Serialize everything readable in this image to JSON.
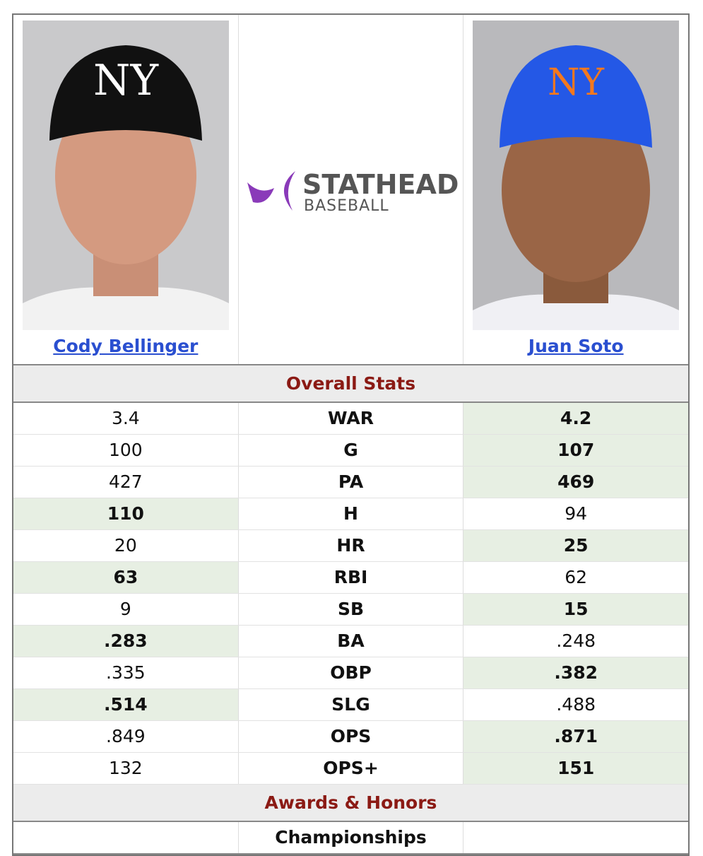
{
  "players": [
    {
      "name": "Cody Bellinger"
    },
    {
      "name": "Juan Soto"
    }
  ],
  "logo": {
    "line1": "STATHEAD",
    "line2": "BASEBALL"
  },
  "sections": [
    {
      "title": "Overall Stats",
      "rows": [
        {
          "stat": "WAR",
          "left": "3.4",
          "right": "4.2"
        },
        {
          "stat": "G",
          "left": "100",
          "right": "107"
        },
        {
          "stat": "PA",
          "left": "427",
          "right": "469"
        },
        {
          "stat": "H",
          "left": "110",
          "right": "94"
        },
        {
          "stat": "HR",
          "left": "20",
          "right": "25"
        },
        {
          "stat": "RBI",
          "left": "63",
          "right": "62"
        },
        {
          "stat": "SB",
          "left": "9",
          "right": "15"
        },
        {
          "stat": "BA",
          "left": ".283",
          "right": ".248"
        },
        {
          "stat": "OBP",
          "left": ".335",
          "right": ".382"
        },
        {
          "stat": "SLG",
          "left": ".514",
          "right": ".488"
        },
        {
          "stat": "OPS",
          "left": ".849",
          "right": ".871"
        },
        {
          "stat": "OPS+",
          "left": "132",
          "right": "151"
        }
      ]
    },
    {
      "title": "Awards & Honors",
      "rows": [
        {
          "stat": "Championships"
        }
      ]
    }
  ]
}
